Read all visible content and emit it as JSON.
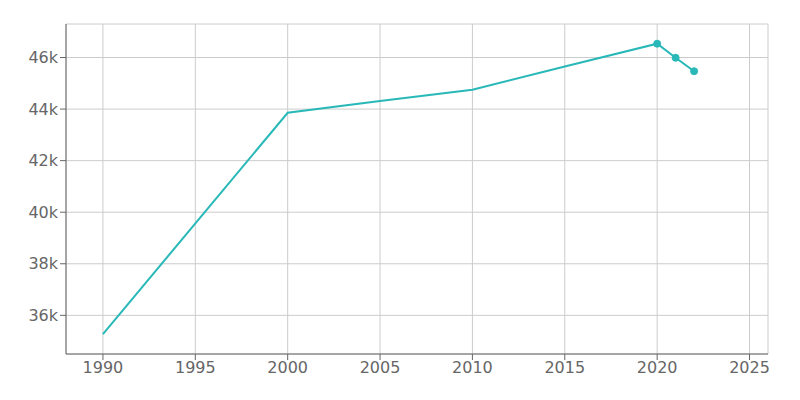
{
  "chart_data": {
    "type": "line",
    "x": [
      1990,
      2000,
      2005,
      2010,
      2015,
      2020,
      2021,
      2022
    ],
    "values": [
      35271,
      43858,
      44312,
      44750,
      45648,
      46536,
      45990,
      45468
    ],
    "color": "#29b8b8",
    "marker": "circle",
    "marker_x": [
      2020,
      2021,
      2022
    ],
    "xlim": [
      1988,
      2026
    ],
    "ylim": [
      34500,
      47300
    ],
    "xticks": [
      1990,
      1995,
      2000,
      2005,
      2010,
      2015,
      2020,
      2025
    ],
    "yticks": [
      {
        "value": 36000,
        "label": "36k"
      },
      {
        "value": 38000,
        "label": "38k"
      },
      {
        "value": 40000,
        "label": "40k"
      },
      {
        "value": 42000,
        "label": "42k"
      },
      {
        "value": 44000,
        "label": "44k"
      },
      {
        "value": 46000,
        "label": "46k"
      }
    ],
    "grid": true
  }
}
